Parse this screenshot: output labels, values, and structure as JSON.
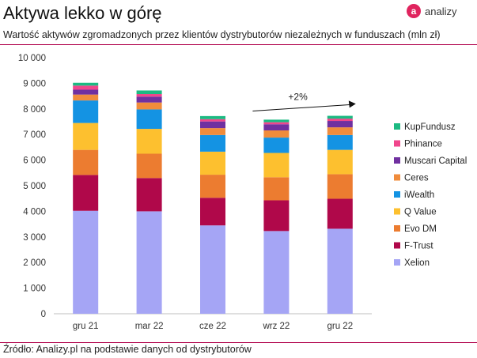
{
  "header": {
    "title": "Aktywa lekko w górę",
    "subtitle": "Wartość aktywów zgromadzonych przez klientów dystrybutorów niezależnych w funduszach (mln zł)"
  },
  "logo": {
    "mark": "a",
    "text": "analizy"
  },
  "footer": {
    "source": "Źródło: Analizy.pl na podstawie danych od dystrybutorów"
  },
  "colors": {
    "accent": "#b0004a",
    "Xelion": "#a5a5f5",
    "F-Trust": "#b0084a",
    "Evo DM": "#ec7c30",
    "Q Value": "#fdc02f",
    "iWealth": "#1493e3",
    "Ceres": "#f08c3c",
    "Muscari Capital": "#7030a0",
    "Phinance": "#f0468c",
    "KupFundusz": "#1cba82"
  },
  "chart_data": {
    "type": "bar",
    "stacked": true,
    "categories": [
      "gru 21",
      "mar 22",
      "cze 22",
      "wrz 22",
      "gru 22"
    ],
    "ylim": [
      0,
      10000
    ],
    "yticks": [
      "0",
      "1 000",
      "2 000",
      "3 000",
      "4 000",
      "5 000",
      "6 000",
      "7 000",
      "8 000",
      "9 000",
      "10 000"
    ],
    "series": [
      {
        "name": "Xelion",
        "values": [
          4020,
          4000,
          3450,
          3230,
          3320
        ]
      },
      {
        "name": "F-Trust",
        "values": [
          1400,
          1300,
          1080,
          1200,
          1170
        ]
      },
      {
        "name": "Evo DM",
        "values": [
          980,
          950,
          900,
          900,
          960
        ]
      },
      {
        "name": "Q Value",
        "values": [
          1050,
          970,
          900,
          950,
          950
        ]
      },
      {
        "name": "iWealth",
        "values": [
          880,
          760,
          650,
          600,
          580
        ]
      },
      {
        "name": "Ceres",
        "values": [
          230,
          270,
          270,
          280,
          300
        ]
      },
      {
        "name": "Muscari Capital",
        "values": [
          190,
          230,
          260,
          240,
          250
        ]
      },
      {
        "name": "Phinance",
        "values": [
          160,
          100,
          90,
          80,
          90
        ]
      },
      {
        "name": "KupFundusz",
        "values": [
          110,
          140,
          120,
          100,
          110
        ]
      }
    ],
    "annotation": "+2%",
    "legend_position": "right",
    "grid": false
  }
}
